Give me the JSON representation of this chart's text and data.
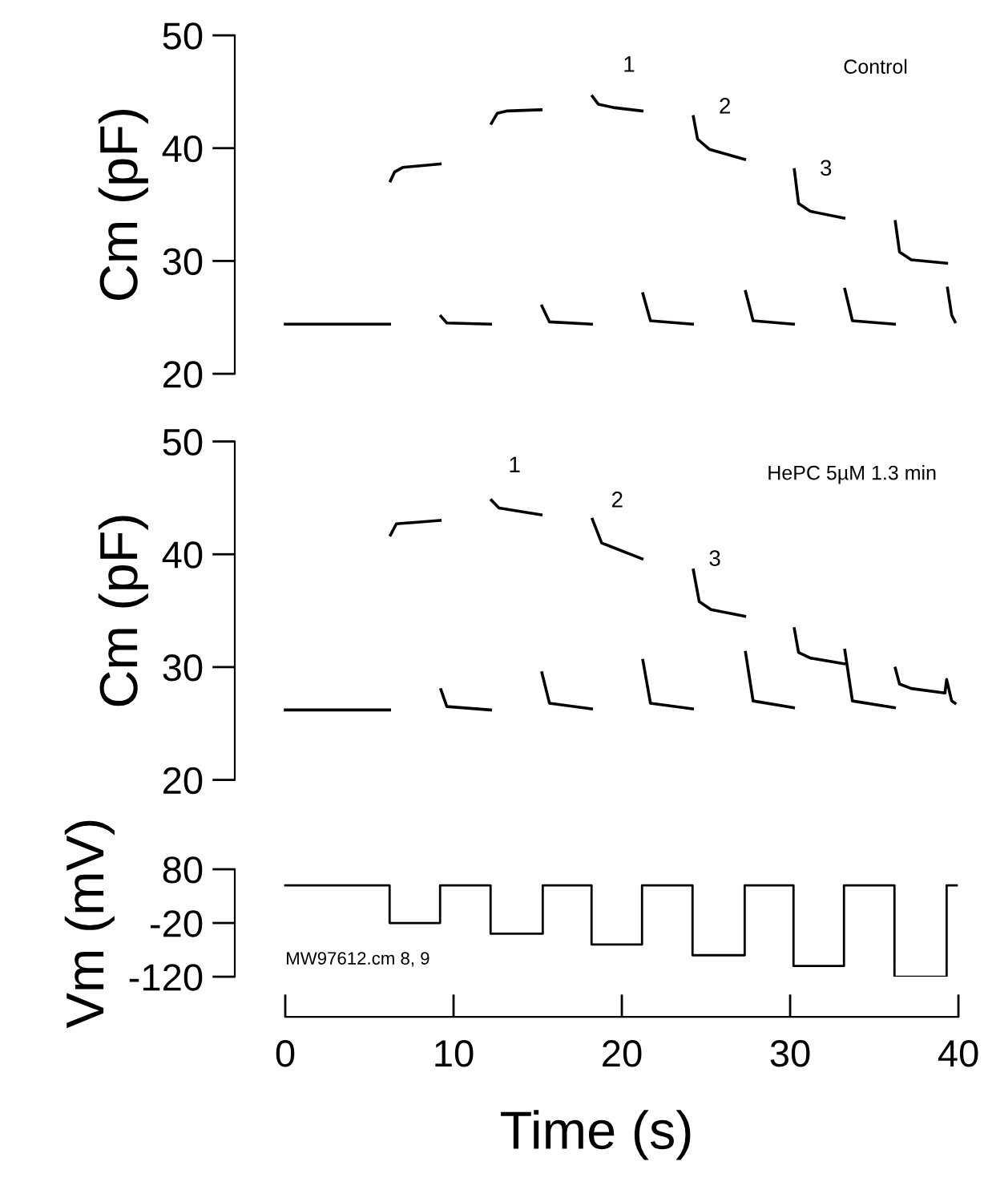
{
  "chart_data": [
    {
      "type": "line",
      "ylabel": "Cm (pF)",
      "xlim": [
        -3,
        40
      ],
      "ylim": [
        20,
        50
      ],
      "yticks": [
        20,
        30,
        40,
        50
      ],
      "xticks": [
        0,
        10,
        20,
        30,
        40
      ],
      "tick_labels": "y",
      "grid": false,
      "annotations": [
        "Control",
        {
          "text": "1",
          "x": 19.5,
          "y": 43.6
        },
        {
          "text": "2",
          "x": 25.2,
          "y": 39.9
        },
        {
          "text": "3",
          "x": 31.2,
          "y": 34.4
        }
      ],
      "series": [
        {
          "color": "#000000",
          "x": [
            0,
            6.2,
            6.22,
            6.25,
            6.5,
            7.0,
            9.2,
            9.22,
            9.25,
            9.6,
            12.2,
            12.22,
            12.25,
            12.6,
            13.2,
            15.2,
            15.22,
            15.25,
            15.7,
            18.2,
            18.22,
            18.25,
            18.6,
            19.5,
            21.2,
            21.22,
            21.25,
            21.7,
            24.2,
            24.22,
            24.25,
            24.5,
            25.2,
            27.3,
            27.32,
            27.35,
            27.8,
            30.2,
            30.22,
            30.25,
            30.5,
            31.2,
            33.2,
            33.22,
            33.25,
            33.7,
            36.2,
            36.22,
            36.25,
            36.5,
            37.2,
            39.3,
            39.32,
            39.35,
            39.6,
            39.8
          ],
          "values": [
            24.4,
            24.4,
            null,
            37.1,
            37.9,
            38.3,
            38.6,
            null,
            25.1,
            24.5,
            24.4,
            null,
            42.2,
            43.1,
            43.3,
            43.4,
            null,
            26.0,
            24.6,
            24.4,
            null,
            44.6,
            43.9,
            43.6,
            43.3,
            null,
            27.1,
            24.7,
            24.4,
            null,
            42.8,
            40.8,
            39.9,
            39.0,
            null,
            27.3,
            24.7,
            24.4,
            null,
            38.1,
            35.1,
            34.4,
            33.8,
            null,
            27.5,
            24.7,
            24.4,
            null,
            33.5,
            30.8,
            30.1,
            29.8,
            null,
            27.6,
            25.2,
            24.6
          ]
        }
      ]
    },
    {
      "type": "line",
      "ylabel": "Cm (pF)",
      "xlim": [
        -3,
        40
      ],
      "ylim": [
        20,
        50
      ],
      "yticks": [
        20,
        30,
        40,
        50
      ],
      "xticks": [
        0,
        10,
        20,
        30,
        40
      ],
      "tick_labels": "y",
      "grid": false,
      "annotations": [
        "HePC 5µM 1.3 min",
        {
          "text": "1",
          "x": 12.7,
          "y": 44.1
        },
        {
          "text": "2",
          "x": 18.8,
          "y": 41.0
        },
        {
          "text": "3",
          "x": 24.6,
          "y": 35.8
        }
      ],
      "series": [
        {
          "color": "#000000",
          "x": [
            0,
            6.2,
            6.22,
            6.25,
            6.6,
            9.2,
            9.22,
            9.25,
            9.6,
            12.2,
            12.22,
            12.25,
            12.7,
            15.2,
            15.22,
            15.25,
            15.7,
            18.2,
            18.22,
            18.25,
            18.8,
            21.2,
            21.22,
            21.25,
            21.7,
            24.2,
            24.22,
            24.25,
            24.6,
            25.3,
            27.3,
            27.32,
            27.35,
            27.8,
            30.2,
            30.22,
            30.25,
            30.5,
            31.2,
            33.2,
            33.22,
            33.25,
            33.7,
            36.2,
            36.22,
            36.25,
            36.5,
            37.2,
            39.2,
            39.3,
            39.6,
            39.8
          ],
          "values": [
            26.2,
            26.2,
            null,
            41.7,
            42.7,
            43.0,
            null,
            28.0,
            26.5,
            26.2,
            null,
            44.8,
            44.1,
            43.5,
            null,
            29.5,
            26.8,
            26.3,
            null,
            43.1,
            41.0,
            39.6,
            null,
            30.6,
            26.8,
            26.3,
            null,
            38.6,
            35.8,
            35.1,
            34.5,
            null,
            31.3,
            27.0,
            26.4,
            null,
            33.4,
            31.3,
            30.8,
            30.3,
            null,
            31.5,
            27.0,
            26.4,
            null,
            29.9,
            28.5,
            28.1,
            27.7,
            28.9,
            27.0,
            26.8
          ]
        }
      ]
    },
    {
      "type": "step",
      "ylabel": "Vm (mV)",
      "xlabel": "Time (s)",
      "xlim": [
        -3,
        40
      ],
      "ylim": [
        -120,
        80
      ],
      "yticks": [
        -120,
        -20,
        80
      ],
      "xticks": [
        0,
        10,
        20,
        30,
        40
      ],
      "grid": false,
      "annotations": [
        "MW97612.cm 8, 9"
      ],
      "series": [
        {
          "color": "#000000",
          "x": [
            0,
            6.2,
            9.2,
            12.2,
            15.3,
            18.2,
            21.2,
            24.2,
            27.3,
            30.2,
            33.2,
            36.2,
            39.3,
            39.9
          ],
          "values": [
            50,
            -20,
            50,
            -40,
            50,
            -60,
            50,
            -80,
            50,
            -100,
            50,
            -120,
            50,
            50
          ]
        }
      ]
    }
  ]
}
